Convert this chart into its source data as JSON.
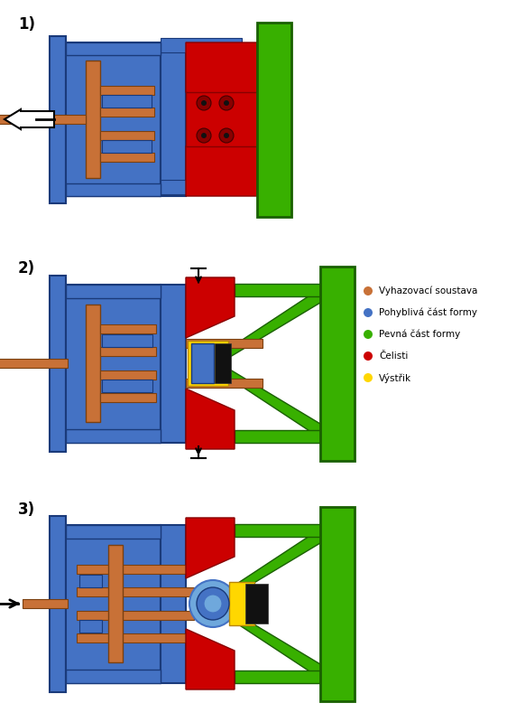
{
  "blue": "#4472C4",
  "blue_dark": "#1a3a7a",
  "blue_light": "#6FA8DC",
  "orange": "#C87137",
  "orange_dark": "#7B4010",
  "green": "#38B000",
  "green_dark": "#1a6000",
  "red": "#CC0000",
  "red_dark": "#880000",
  "yellow": "#FFD700",
  "yellow_dark": "#B8860B",
  "black": "#111111",
  "bg": "#FFFFFF",
  "legend_labels": [
    "Vyhazovací soustava",
    "Pohyblivá část formy",
    "Pevná část formy",
    "Čelisti",
    "Výstřik"
  ],
  "legend_colors": [
    "#C87137",
    "#4472C4",
    "#38B000",
    "#CC0000",
    "#FFD700"
  ]
}
